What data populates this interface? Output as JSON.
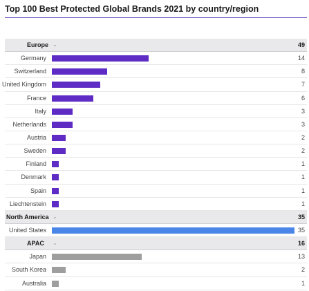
{
  "title": "Top 100 Best Protected Global Brands 2021 by country/region",
  "chevron_glyph": "⌄",
  "colors": {
    "Europe": "#5e2bc4",
    "North America": "#4a86e8",
    "APAC": "#9e9e9e",
    "rule": "#7c5cc4"
  },
  "chart_data": {
    "type": "bar",
    "orientation": "horizontal",
    "title": "Top 100 Best Protected Global Brands 2021 by country/region",
    "xlim": [
      0,
      35
    ],
    "grid": false,
    "groups": [
      {
        "name": "Europe",
        "total": 49,
        "categories": [
          "Germany",
          "Switzerland",
          "United Kingdom",
          "France",
          "Italy",
          "Netherlands",
          "Austria",
          "Sweden",
          "Finland",
          "Denmark",
          "Spain",
          "Liechtenstein"
        ],
        "values": [
          14,
          8,
          7,
          6,
          3,
          3,
          2,
          2,
          1,
          1,
          1,
          1
        ]
      },
      {
        "name": "North America",
        "total": 35,
        "categories": [
          "United States"
        ],
        "values": [
          35
        ]
      },
      {
        "name": "APAC",
        "total": 16,
        "categories": [
          "Japan",
          "South Korea",
          "Australia"
        ],
        "values": [
          13,
          2,
          1
        ]
      }
    ]
  }
}
